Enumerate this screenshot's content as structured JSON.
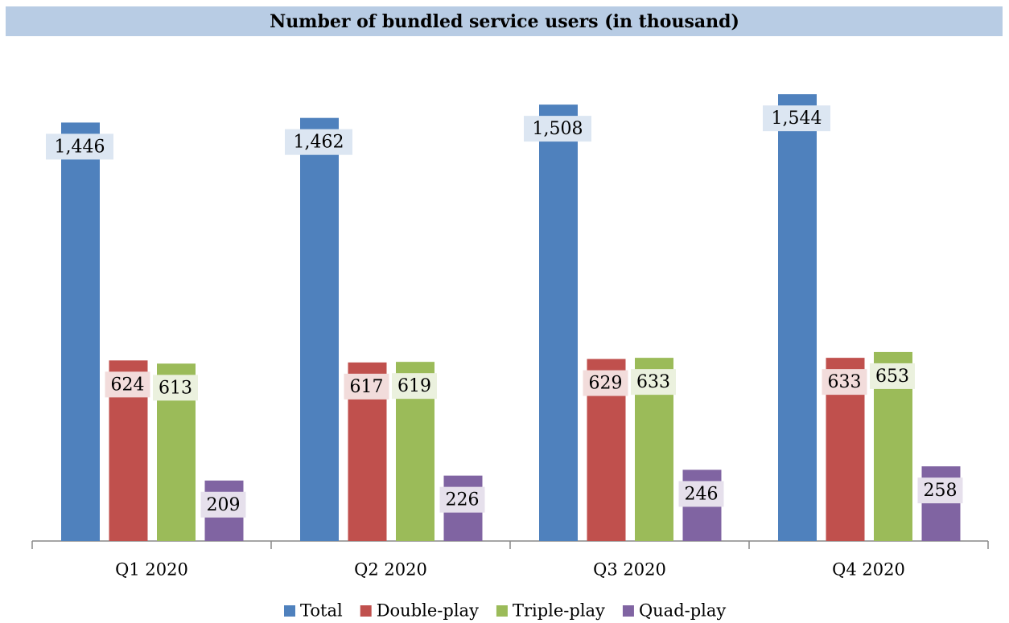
{
  "chart_data": {
    "type": "bar",
    "title": "Number of bundled service users (in thousand)",
    "categories": [
      "Q1 2020",
      "Q2 2020",
      "Q3 2020",
      "Q4 2020"
    ],
    "series": [
      {
        "name": "Total",
        "color": "#4f81bd",
        "values": [
          1446,
          1462,
          1508,
          1544
        ],
        "value_labels": [
          "1,446",
          "1,462",
          "1,508",
          "1,544"
        ]
      },
      {
        "name": "Double-play",
        "color": "#c0504d",
        "values": [
          624,
          617,
          629,
          633
        ]
      },
      {
        "name": "Triple-play",
        "color": "#9bbb59",
        "values": [
          613,
          619,
          633,
          653
        ]
      },
      {
        "name": "Quad-play",
        "color": "#8064a2",
        "values": [
          209,
          226,
          246,
          258
        ]
      }
    ],
    "legend": "bottom"
  }
}
